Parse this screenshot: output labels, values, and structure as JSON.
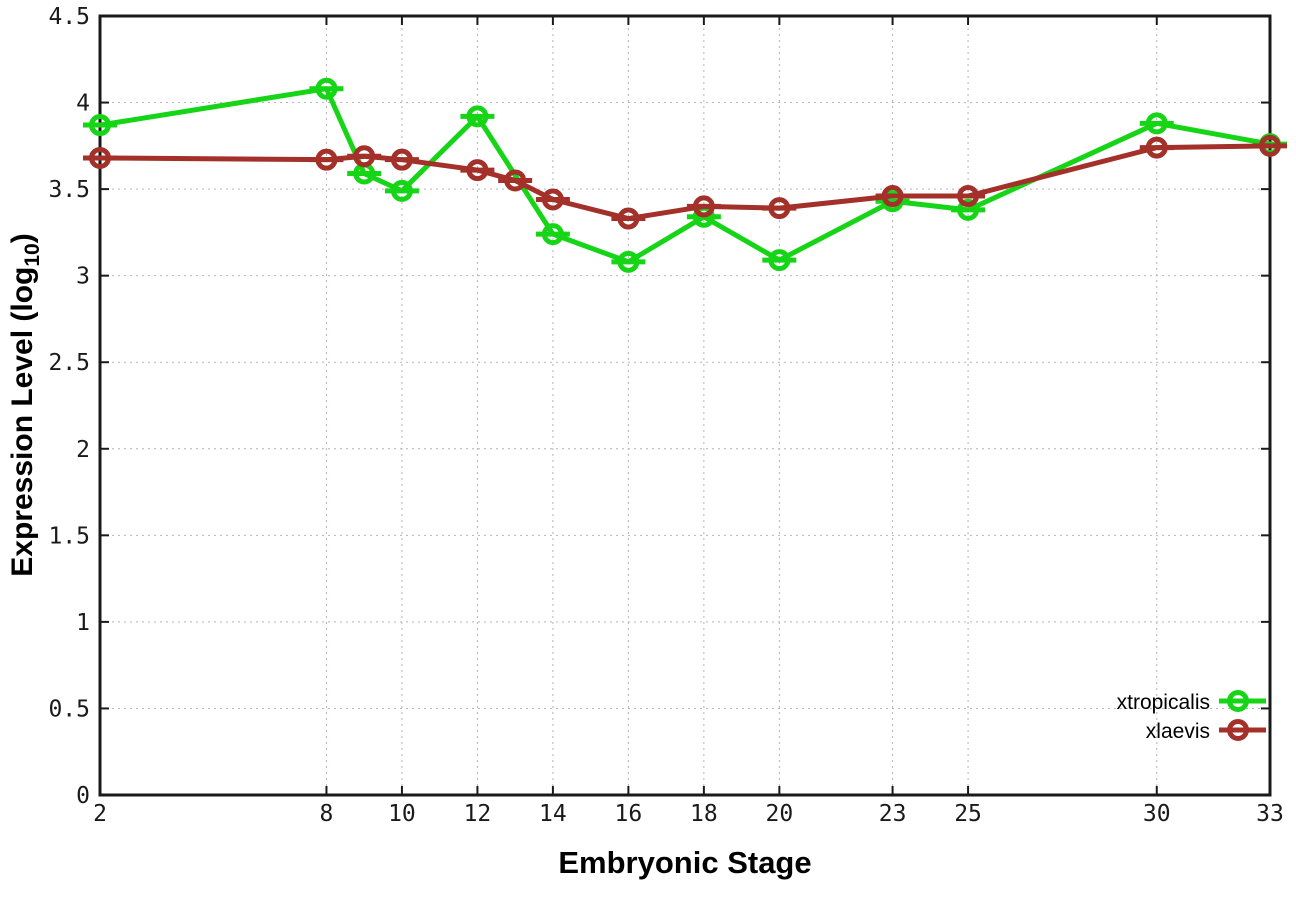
{
  "page": {
    "background": "#ffffff"
  },
  "chart_data": {
    "type": "line",
    "title": "",
    "xlabel": "Embryonic Stage",
    "ylabel": "Expression Level (log10)",
    "ylabel_parts": {
      "prefix": "Expression Level (log",
      "subscript": "10",
      "suffix": ")"
    },
    "xlim": [
      2,
      33
    ],
    "ylim": [
      0,
      4.5
    ],
    "x_ticks": [
      2,
      8,
      10,
      12,
      14,
      16,
      18,
      20,
      23,
      25,
      30,
      33
    ],
    "x_tick_labels": [
      "2",
      "8",
      "10",
      "12",
      "14",
      "16",
      "18",
      "20",
      "23",
      "25",
      "30",
      "33"
    ],
    "y_ticks": [
      0,
      0.5,
      1,
      1.5,
      2,
      2.5,
      3,
      3.5,
      4,
      4.5
    ],
    "y_tick_labels": [
      "0",
      "0.5",
      "1",
      "1.5",
      "2",
      "2.5",
      "3",
      "3.5",
      "4",
      "4.5"
    ],
    "grid": true,
    "grid_style": "dotted",
    "legend_position": "bottom-right",
    "marker": "open-circle-with-horizontal-dash",
    "colors": {
      "grid": "#b4b4c4",
      "border": "#1a1a1a",
      "tick_text": "#1a1a1a"
    },
    "series": [
      {
        "name": "xtropicalis",
        "color": "#16d416",
        "x": [
          2,
          8,
          9,
          10,
          12,
          14,
          16,
          18,
          20,
          23,
          25,
          30,
          33
        ],
        "y": [
          3.87,
          4.08,
          3.59,
          3.49,
          3.92,
          3.24,
          3.08,
          3.34,
          3.09,
          3.43,
          3.38,
          3.88,
          3.76
        ]
      },
      {
        "name": "xlaevis",
        "color": "#a33029",
        "x": [
          2,
          8,
          9,
          10,
          12,
          13,
          14,
          16,
          18,
          20,
          23,
          25,
          30,
          33
        ],
        "y": [
          3.68,
          3.67,
          3.69,
          3.67,
          3.61,
          3.55,
          3.44,
          3.33,
          3.4,
          3.39,
          3.46,
          3.46,
          3.74,
          3.75
        ]
      }
    ]
  }
}
